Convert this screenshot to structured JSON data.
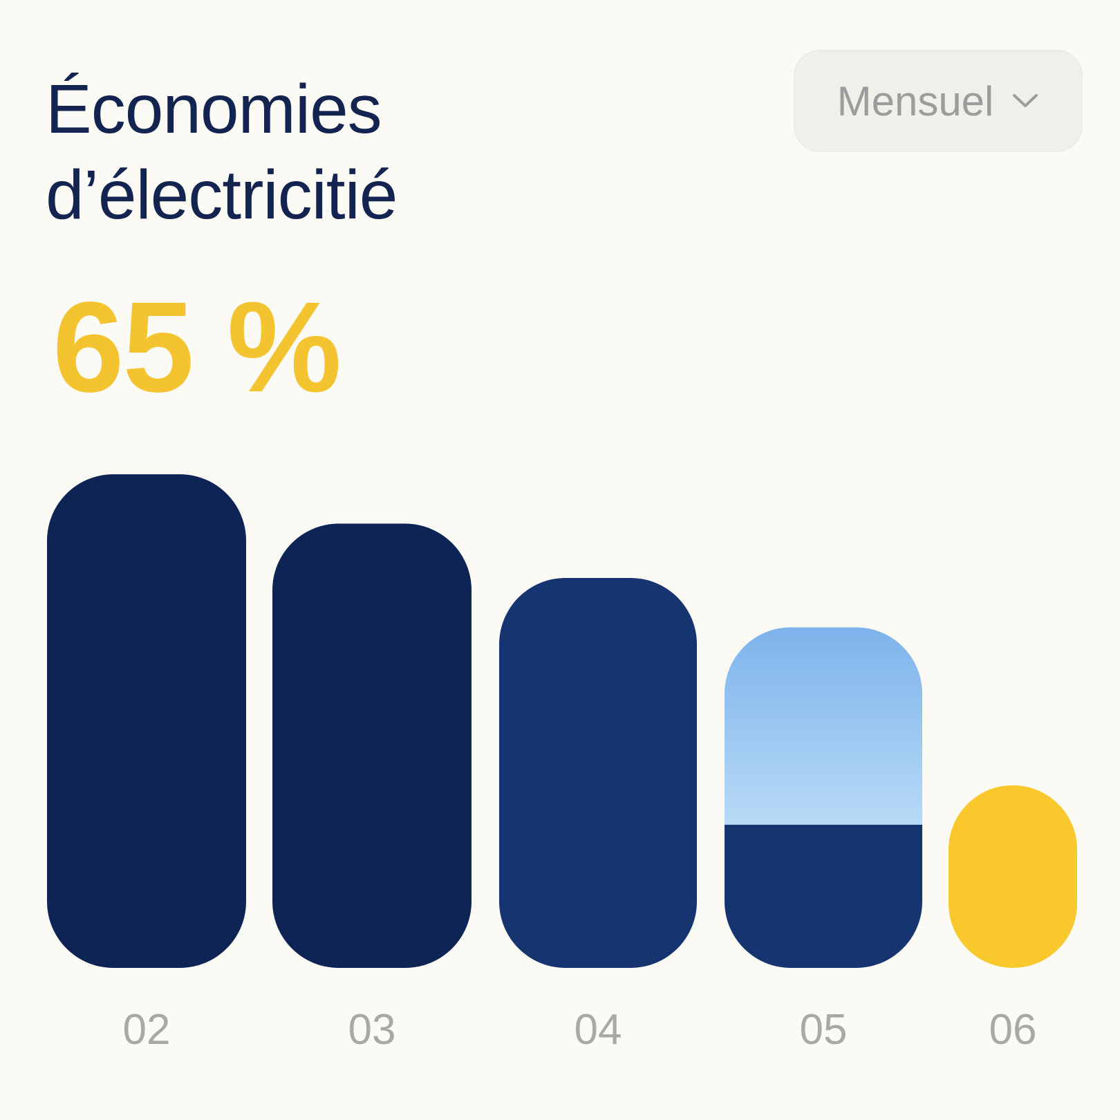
{
  "title_lines": [
    "Économies",
    "d’électricitié"
  ],
  "highlight_value": "65 %",
  "period_select": {
    "label": "Mensuel"
  },
  "colors": {
    "dark_navy": "#0E2455",
    "navy": "#16346F",
    "light_blue_top": "#7DB3EC",
    "light_blue_bottom": "#B8DAF6",
    "yellow": "#F9C82D",
    "tick_text": "#A9A8A4",
    "title_text": "#12244F"
  },
  "icons": {
    "period_select": "chevron-down-icon"
  },
  "chart_data": {
    "type": "bar",
    "categories": [
      "02",
      "03",
      "04",
      "05",
      "06"
    ],
    "series": [
      {
        "values": [
          100,
          90,
          79,
          69,
          37
        ]
      }
    ],
    "segments": {
      "category": "05",
      "lower_value": 29,
      "upper_value": 40
    },
    "ylim": [
      0,
      100
    ],
    "grid": false,
    "legend": "none"
  }
}
